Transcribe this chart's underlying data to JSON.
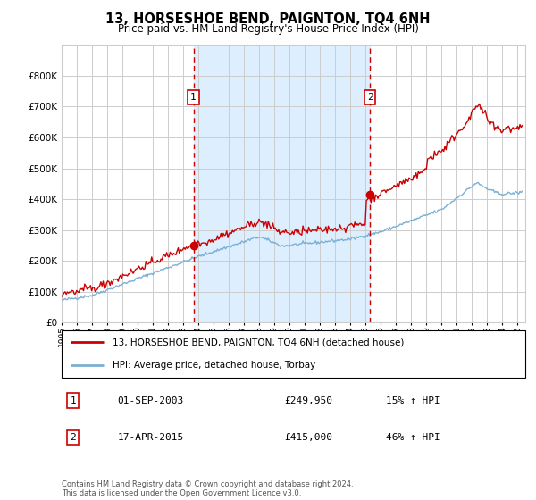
{
  "title": "13, HORSESHOE BEND, PAIGNTON, TQ4 6NH",
  "subtitle": "Price paid vs. HM Land Registry's House Price Index (HPI)",
  "legend_line1": "13, HORSESHOE BEND, PAIGNTON, TQ4 6NH (detached house)",
  "legend_line2": "HPI: Average price, detached house, Torbay",
  "annotation1_label": "1",
  "annotation1_date": "01-SEP-2003",
  "annotation1_price": "£249,950",
  "annotation1_hpi": "15% ↑ HPI",
  "annotation2_label": "2",
  "annotation2_date": "17-APR-2015",
  "annotation2_price": "£415,000",
  "annotation2_hpi": "46% ↑ HPI",
  "footer": "Contains HM Land Registry data © Crown copyright and database right 2024.\nThis data is licensed under the Open Government Licence v3.0.",
  "red_color": "#cc0000",
  "blue_color": "#7bafd4",
  "bg_shaded_color": "#ddeeff",
  "grid_color": "#cccccc",
  "ylim": [
    0,
    900000
  ],
  "yticks": [
    0,
    100000,
    200000,
    300000,
    400000,
    500000,
    600000,
    700000,
    800000
  ],
  "xlim_start": 1995,
  "xlim_end": 2025.5,
  "sale1_x": 2003.67,
  "sale1_y": 249950,
  "sale2_x": 2015.29,
  "sale2_y": 415000,
  "shade_start": 2003.67,
  "shade_end": 2015.29
}
